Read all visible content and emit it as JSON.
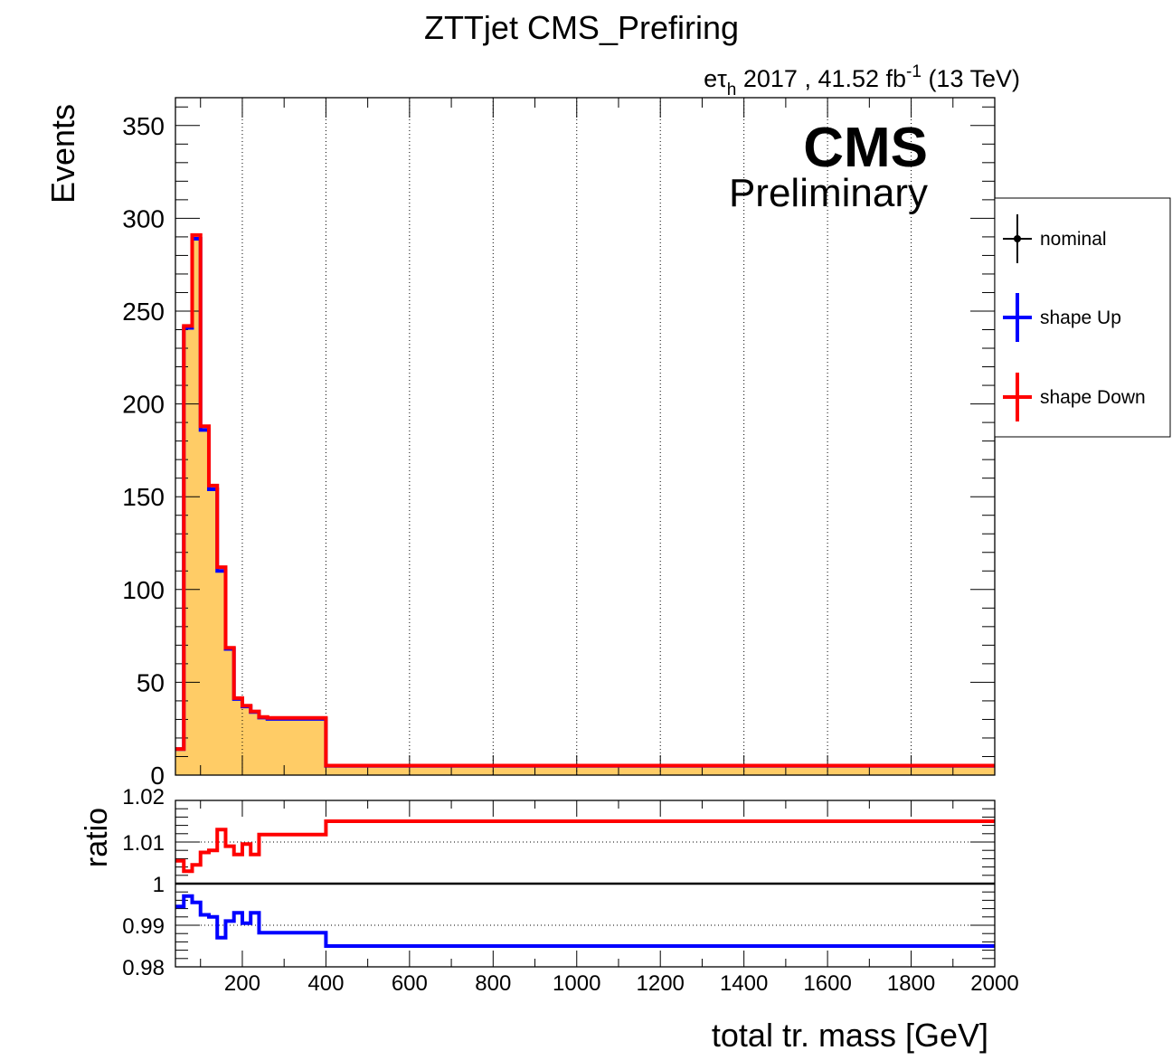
{
  "title": "ZTTjet CMS_Prefiring",
  "lumi": {
    "channel_e": "e",
    "channel_tau": "τ",
    "channel_sub": "h",
    "info": " 2017 , 41.52 fb",
    "exp": "-1",
    "energy": " (13 TeV)"
  },
  "cms_label": "CMS",
  "preliminary_label": "Preliminary",
  "legend": [
    {
      "label": "nominal",
      "color": "#000000"
    },
    {
      "label": "shape Up",
      "color": "#0000ff"
    },
    {
      "label": "shape Down",
      "color": "#ff0000"
    }
  ],
  "colors": {
    "fill": "#ffcc66",
    "nominal": "#000000",
    "up": "#0000ff",
    "down": "#ff0000"
  },
  "chart_data": [
    {
      "type": "histogram",
      "name": "main",
      "ylabel": "Events",
      "xlim": [
        40,
        2000
      ],
      "ylim": [
        0,
        365
      ],
      "yticks": [
        0,
        50,
        100,
        150,
        200,
        250,
        300,
        350
      ],
      "ytick_labels": [
        "0",
        "50",
        "100",
        "150",
        "200",
        "250",
        "300",
        "350"
      ],
      "xgrid": [
        200,
        400,
        600,
        800,
        1000,
        1200,
        1400,
        1600,
        1800
      ],
      "bin_edges": [
        40,
        60,
        80,
        100,
        120,
        140,
        160,
        180,
        200,
        220,
        240,
        260,
        280,
        300,
        320,
        340,
        360,
        380,
        400,
        2000
      ],
      "series": [
        {
          "name": "nominal",
          "values": [
            14,
            241,
            290,
            187,
            155,
            111,
            68,
            41,
            37,
            34,
            31,
            30.5,
            30.5,
            30.5,
            30.5,
            30.5,
            30.5,
            30.5,
            5
          ]
        },
        {
          "name": "shape Up",
          "values": [
            14,
            241,
            289,
            186,
            154,
            110,
            68,
            41,
            37,
            34,
            31,
            30.3,
            30.3,
            30.3,
            30.3,
            30.3,
            30.3,
            30.3,
            5
          ]
        },
        {
          "name": "shape Down",
          "values": [
            14.1,
            242,
            291,
            188,
            156,
            112,
            68.6,
            41.5,
            37.4,
            34.3,
            31.3,
            30.8,
            30.8,
            30.8,
            30.8,
            30.8,
            30.8,
            30.8,
            5.1
          ]
        }
      ]
    },
    {
      "type": "line",
      "name": "ratio",
      "ylabel": "ratio",
      "xlabel": "total tr. mass [GeV]",
      "xlim": [
        40,
        2000
      ],
      "ylim": [
        0.98,
        1.02
      ],
      "yticks": [
        0.98,
        0.99,
        1,
        1.01,
        1.02
      ],
      "ytick_labels": [
        "0.98",
        "0.99",
        "1",
        "1.01",
        "1.02"
      ],
      "xticks": [
        200,
        400,
        600,
        800,
        1000,
        1200,
        1400,
        1600,
        1800,
        2000
      ],
      "xtick_labels": [
        "200",
        "400",
        "600",
        "800",
        "1000",
        "1200",
        "1400",
        "1600",
        "1800",
        "2000"
      ],
      "ygrid": [
        0.99,
        1.01
      ],
      "bin_edges": [
        40,
        60,
        80,
        100,
        120,
        140,
        160,
        180,
        200,
        220,
        240,
        260,
        280,
        300,
        320,
        340,
        360,
        380,
        400,
        2000
      ],
      "series": [
        {
          "name": "shape Up",
          "values": [
            0.9945,
            0.997,
            0.9955,
            0.9925,
            0.992,
            0.987,
            0.991,
            0.993,
            0.9905,
            0.993,
            0.9882,
            0.9882,
            0.9882,
            0.9882,
            0.9882,
            0.9882,
            0.9882,
            0.9882,
            0.985
          ]
        },
        {
          "name": "shape Down",
          "values": [
            1.0055,
            1.003,
            1.0045,
            1.0075,
            1.008,
            1.013,
            1.009,
            1.007,
            1.0095,
            1.007,
            1.0118,
            1.0118,
            1.0118,
            1.0118,
            1.0118,
            1.0118,
            1.0118,
            1.0118,
            1.015
          ]
        }
      ]
    }
  ]
}
